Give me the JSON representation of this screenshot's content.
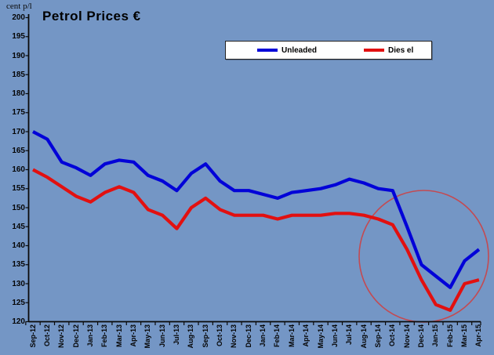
{
  "title": "Petrol Prices €",
  "y_axis_unit": "cent p/l",
  "colors": {
    "background": "#7496C5",
    "unleaded_line": "#0202D8",
    "diesel_line": "#E21010",
    "annotation_circle": "#C34A52",
    "axis": "#0a0a0a",
    "legend_background": "#FFFFFF"
  },
  "legend": {
    "items": [
      {
        "label": "Unleaded",
        "color": "#0202D8"
      },
      {
        "label": "Dies el",
        "color": "#E21010"
      }
    ]
  },
  "chart_data": {
    "type": "line",
    "title": "Petrol Prices €",
    "ylabel": "cent p/l",
    "xlabel": "",
    "ylim": [
      120,
      200
    ],
    "ytick_step": 5,
    "grid": false,
    "legend_position": "top-center",
    "categories": [
      "Sep-12",
      "Oct-12",
      "Nov-12",
      "Dec-12",
      "Jan-13",
      "Feb-13",
      "Mar-13",
      "Apr-13",
      "May-13",
      "Jun-13",
      "Jul-13",
      "Aug-13",
      "Sep-13",
      "Oct-13",
      "Nov-13",
      "Dec-13",
      "Jan-14",
      "Feb-14",
      "Mar-14",
      "Apr-14",
      "May-14",
      "Jun-14",
      "Jul-14",
      "Aug-14",
      "Sep-14",
      "Oct-14",
      "Nov-14",
      "Dec-14",
      "Jan-15",
      "Feb-15",
      "Mar-15",
      "Apr-15"
    ],
    "series": [
      {
        "name": "Unleaded",
        "color": "#0202D8",
        "values": [
          170,
          168,
          162,
          160.5,
          158.5,
          161.5,
          162.5,
          162,
          158.5,
          157,
          154.5,
          159,
          161.5,
          157,
          154.5,
          154.5,
          153.5,
          152.5,
          154,
          154.5,
          155,
          156,
          157.5,
          156.5,
          155,
          154.5,
          145,
          135,
          132,
          129,
          136,
          139
        ]
      },
      {
        "name": "Dies el",
        "color": "#E21010",
        "values": [
          160,
          158,
          155.5,
          153,
          151.5,
          154,
          155.5,
          154,
          149.5,
          148,
          144.5,
          150,
          152.5,
          149.5,
          148,
          148,
          148,
          147,
          148,
          148,
          148,
          148.5,
          148.5,
          148,
          147,
          145.5,
          139,
          131,
          124.5,
          123,
          130,
          131
        ]
      }
    ],
    "annotations": [
      {
        "type": "ellipse",
        "color": "#C34A52",
        "note": "circle highlighting the price drop from Nov-14 to Apr-15",
        "x_range": [
          "Oct-14",
          "Apr-15"
        ],
        "y_range": [
          121,
          155
        ]
      }
    ]
  }
}
